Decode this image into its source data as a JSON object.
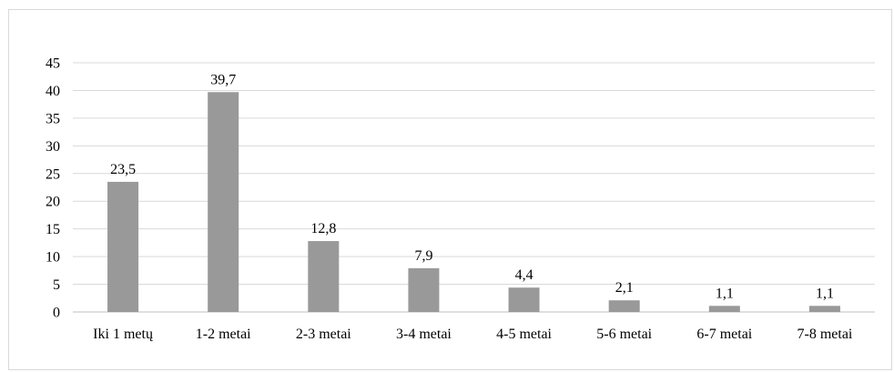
{
  "chart_data": {
    "type": "bar",
    "categories": [
      "Iki 1 metų",
      "1-2 metai",
      "2-3 metai",
      "3-4 metai",
      "4-5 metai",
      "5-6 metai",
      "6-7 metai",
      "7-8 metai"
    ],
    "values": [
      23.5,
      39.7,
      12.8,
      7.9,
      4.4,
      2.1,
      1.1,
      1.1
    ],
    "data_labels": [
      "23,5",
      "39,7",
      "12,8",
      "7,9",
      "4,4",
      "2,1",
      "1,1",
      "1,1"
    ],
    "y_ticks": [
      0,
      5,
      10,
      15,
      20,
      25,
      30,
      35,
      40,
      45
    ],
    "ylim": [
      0,
      45
    ],
    "title": "",
    "xlabel": "",
    "ylabel": "",
    "grid": true,
    "legend": "none",
    "bar_color": "#999999",
    "grid_color": "#d9d9d9",
    "axis_color": "#bfbfbf"
  }
}
